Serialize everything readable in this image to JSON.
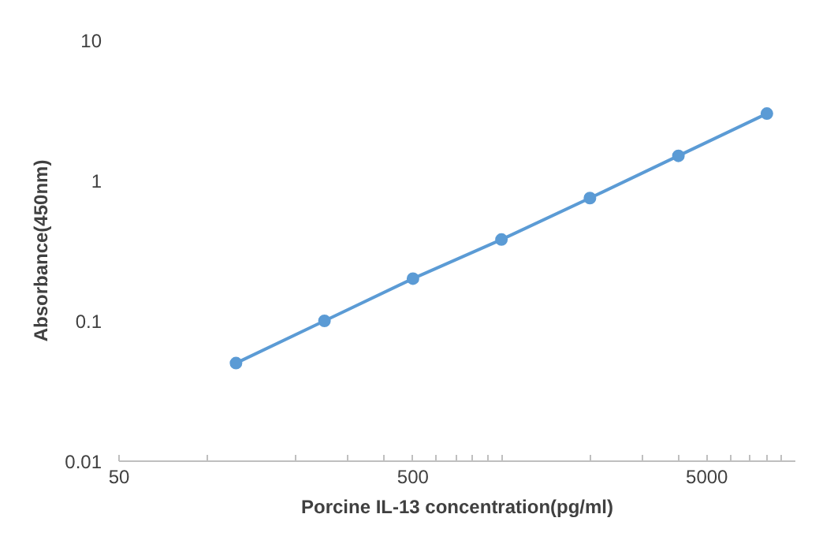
{
  "chart_data": {
    "type": "line",
    "xlabel": "Porcine IL-13 concentration(pg/ml)",
    "ylabel": "Absorbance(450nm)",
    "x": [
      125,
      250,
      500,
      1000,
      2000,
      4000,
      8000
    ],
    "series": [
      {
        "color": "#5b9bd5",
        "values": [
          0.05,
          0.1,
          0.2,
          0.38,
          0.75,
          1.5,
          3.0
        ]
      }
    ],
    "log": "xy",
    "xlim": [
      50,
      10000
    ],
    "ylim": [
      0.01,
      10
    ],
    "xticks": [
      50,
      {
        "value": 100,
        "label": null
      },
      {
        "value": 200,
        "label": null
      },
      {
        "value": 300,
        "label": null
      },
      {
        "value": 400,
        "label": null
      },
      500,
      {
        "value": 600,
        "label": null
      },
      {
        "value": 700,
        "label": null
      },
      {
        "value": 800,
        "label": null
      },
      {
        "value": 900,
        "label": null
      },
      {
        "value": 1000,
        "label": null
      },
      {
        "value": 2000,
        "label": null
      },
      {
        "value": 3000,
        "label": null
      },
      {
        "value": 4000,
        "label": null
      },
      5000,
      {
        "value": 6000,
        "label": null
      },
      {
        "value": 7000,
        "label": null
      },
      {
        "value": 8000,
        "label": null
      },
      {
        "value": 9000,
        "label": null
      }
    ],
    "yticks": [
      0.01,
      0.1,
      1,
      10
    ],
    "grid": false,
    "marker": "circle",
    "line_style": "solid"
  }
}
